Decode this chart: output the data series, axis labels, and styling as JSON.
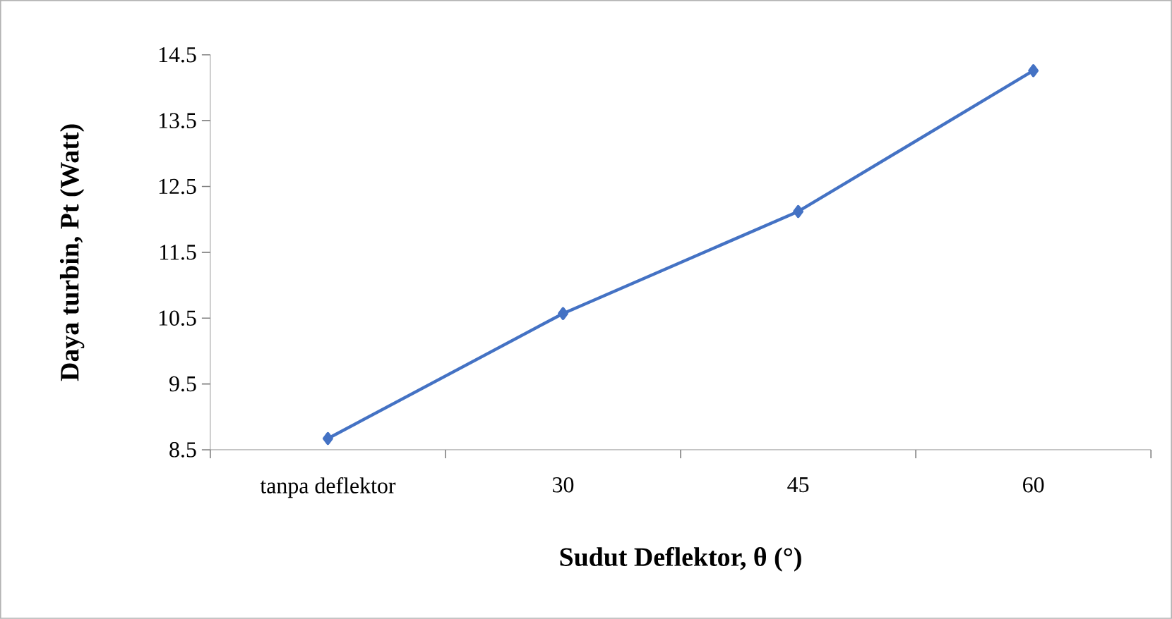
{
  "chart_data": {
    "type": "line",
    "xlabel": "Sudut Deflektor, θ (°)",
    "ylabel": "Daya turbin, Pt (Watt)",
    "categories": [
      "tanpa deflektor",
      "30",
      "45",
      "60"
    ],
    "series": [
      {
        "color": "#4472c4",
        "values": [
          8.67,
          10.57,
          12.12,
          14.26
        ]
      }
    ],
    "ylim": [
      8.5,
      14.5
    ],
    "yticks": [
      8.5,
      9.5,
      10.5,
      11.5,
      12.5,
      13.5,
      14.5
    ],
    "marker": "diamond",
    "line_style": "solid"
  }
}
